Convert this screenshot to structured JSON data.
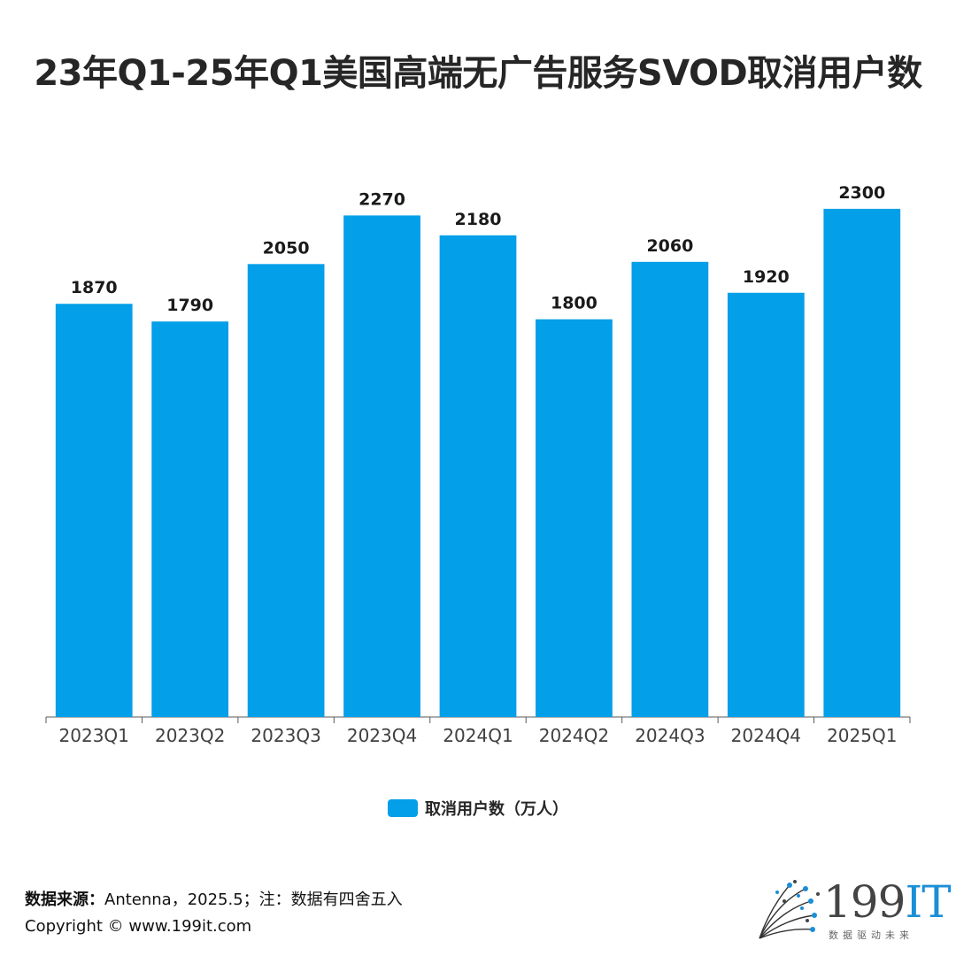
{
  "title": "23年Q1-25年Q1美国高端无广告服务SVOD取消用户数",
  "chart_data": {
    "type": "bar",
    "categories": [
      "2023Q1",
      "2023Q2",
      "2023Q3",
      "2023Q4",
      "2024Q1",
      "2024Q2",
      "2024Q3",
      "2024Q4",
      "2025Q1"
    ],
    "series": [
      {
        "name": "取消用户数（万人）",
        "values": [
          1870,
          1790,
          2050,
          2270,
          2180,
          1800,
          2060,
          1920,
          2300
        ]
      }
    ],
    "ylim": [
      0,
      2540
    ],
    "grid": false,
    "legend_position": "bottom",
    "bar_color": "#039fe8"
  },
  "source": {
    "label": "数据来源：",
    "text": "Antenna，2025.5；注：数据有四舍五入"
  },
  "copyright": "Copyright © www.199it.com",
  "logo": {
    "main": "199",
    "accent": "IT",
    "tagline": "数据驱动未来"
  }
}
